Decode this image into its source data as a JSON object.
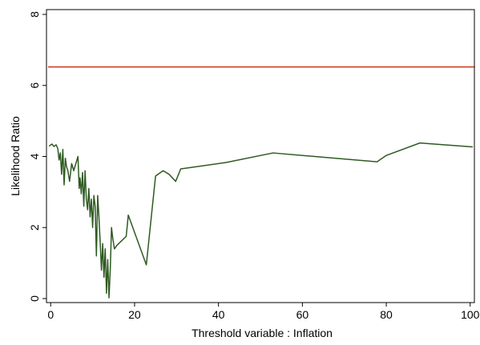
{
  "chart_data": {
    "type": "line",
    "title": "",
    "xlabel": "Threshold variable : Inflation",
    "ylabel": "Likelihood Ratio",
    "xlim": [
      -1,
      101
    ],
    "ylim": [
      0,
      8
    ],
    "xticks": [
      0,
      20,
      40,
      60,
      80,
      100
    ],
    "yticks": [
      0,
      2,
      4,
      6,
      8
    ],
    "grid": false,
    "legend": "none",
    "series": [
      {
        "color": "#c8381e",
        "x": [
          -0.5,
          101
        ],
        "y": [
          6.52,
          6.52
        ]
      },
      {
        "color": "#2f5a22",
        "x": [
          -0.3,
          0.3,
          0.8,
          1.3,
          1.7,
          2.0,
          2.3,
          2.6,
          2.9,
          3.2,
          3.5,
          3.8,
          4.1,
          4.5,
          5.0,
          5.5,
          6.0,
          6.5,
          6.8,
          7.0,
          7.3,
          7.6,
          7.9,
          8.2,
          8.5,
          8.8,
          9.1,
          9.4,
          9.7,
          10.0,
          10.3,
          10.6,
          10.9,
          11.2,
          11.5,
          11.8,
          12.1,
          12.4,
          12.7,
          13.0,
          13.3,
          13.6,
          13.9,
          14.2,
          14.5,
          14.8,
          15.2,
          15.8,
          18.0,
          18.5,
          22.8,
          25.0,
          26.8,
          28.2,
          29.8,
          31.0,
          41.8,
          53.0,
          77.8,
          80.0,
          88.0,
          100.5
        ],
        "y": [
          4.3,
          4.35,
          4.28,
          4.33,
          4.22,
          3.9,
          4.1,
          3.5,
          4.2,
          3.2,
          3.95,
          3.7,
          3.6,
          3.3,
          3.8,
          3.6,
          3.8,
          4.0,
          3.1,
          3.4,
          2.95,
          3.55,
          2.6,
          3.6,
          2.8,
          2.5,
          3.1,
          2.3,
          2.8,
          2.0,
          2.9,
          2.6,
          1.2,
          2.9,
          2.3,
          1.6,
          0.8,
          1.55,
          0.6,
          1.4,
          0.15,
          1.1,
          0.02,
          0.8,
          2.0,
          1.7,
          1.4,
          1.5,
          1.75,
          2.35,
          0.95,
          3.45,
          3.6,
          3.5,
          3.3,
          3.65,
          3.83,
          4.1,
          3.85,
          4.03,
          4.38,
          4.27
        ]
      }
    ]
  }
}
